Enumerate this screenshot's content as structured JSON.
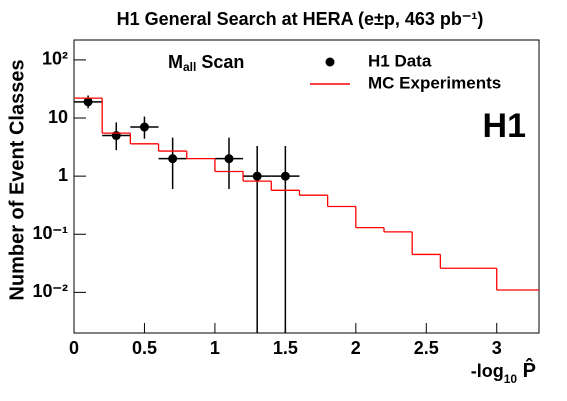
{
  "chart_data": {
    "type": "histogram",
    "title": "H1 General Search at HERA (e±p, 463 pb⁻¹)",
    "annotation": {
      "main": "M",
      "sub": "all",
      "rest": " Scan"
    },
    "logo": "H1",
    "y_label": "Number of Event Classes",
    "x_label": {
      "main": "-log",
      "sub": "10",
      "rest": " P̂"
    },
    "log_y": true,
    "xlim": [
      0,
      3.3
    ],
    "ylim": [
      0.002,
      220
    ],
    "xticks": [
      0,
      0.5,
      1,
      1.5,
      2,
      2.5,
      3
    ],
    "yticks": [
      {
        "value": 0.01,
        "label": "10⁻²"
      },
      {
        "value": 0.1,
        "label": "10⁻¹"
      },
      1,
      10,
      {
        "value": 100,
        "label": "10²"
      }
    ],
    "legend": "top-right",
    "series": [
      {
        "name": "H1 Data",
        "kind": "errorbar",
        "color": "#000000",
        "x": [
          0.1,
          0.3,
          0.5,
          0.7,
          1.1,
          1.3,
          1.5
        ],
        "values": [
          19,
          5,
          7,
          2,
          2,
          1,
          1
        ],
        "err_low": [
          4.3,
          2.2,
          2.6,
          1.4,
          1.4,
          1,
          1
        ],
        "err_high": [
          5.4,
          3.4,
          3.6,
          2.6,
          2.6,
          2.3,
          2.3
        ],
        "xerr": [
          0.1,
          0.1,
          0.1,
          0.1,
          0.1,
          0.1,
          0.1
        ]
      },
      {
        "name": "MC Experiments",
        "kind": "step",
        "color": "#ff0000",
        "bins": [
          0,
          0.2,
          0.4,
          0.6,
          0.8,
          1.0,
          1.2,
          1.4,
          1.6,
          1.8,
          2.0,
          2.2,
          2.4,
          2.6,
          2.8,
          3.0,
          3.3
        ],
        "values": [
          22,
          5.5,
          3.6,
          2.7,
          2.0,
          1.2,
          0.82,
          0.57,
          0.47,
          0.3,
          0.13,
          0.11,
          0.045,
          0.026,
          0.026,
          0.011
        ]
      }
    ]
  }
}
